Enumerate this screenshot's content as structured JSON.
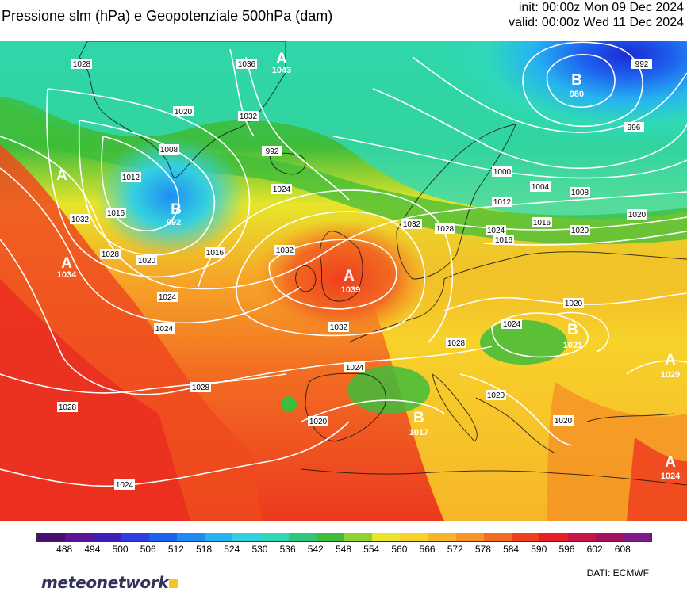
{
  "header": {
    "title": "Pressione slm (hPa) e Geopotenziale 500hPa (dam)",
    "init": "init: 00:00z Mon 09 Dec 2024",
    "valid": "valid: 00:00z Wed 11 Dec 2024"
  },
  "isobar_labels": [
    "1028",
    "1036",
    "1020",
    "1032",
    "1008",
    "1012",
    "1016",
    "992",
    "1024",
    "1032",
    "1028",
    "1024",
    "1016",
    "1020",
    "1032",
    "1032",
    "1028",
    "1028",
    "1024",
    "1024",
    "1032",
    "1028",
    "1020",
    "1024",
    "1028",
    "1020",
    "1016",
    "1020",
    "1012",
    "1020",
    "1000",
    "1004",
    "1008",
    "1016",
    "1020",
    "1024",
    "996",
    "992",
    "1020",
    "1024",
    "1024",
    "1028",
    "1032"
  ],
  "pressure_centers": [
    {
      "letter": "A",
      "value": "1043"
    },
    {
      "letter": "B",
      "value": "992"
    },
    {
      "letter": "A",
      "value": "1034"
    },
    {
      "letter": "A",
      "value": "1039"
    },
    {
      "letter": "B",
      "value": "1017"
    },
    {
      "letter": "B",
      "value": "1021"
    },
    {
      "letter": "A",
      "value": "1029"
    },
    {
      "letter": "A",
      "value": "1024"
    },
    {
      "letter": "B",
      "value": "980"
    },
    {
      "letter": "A",
      "value": ""
    }
  ],
  "legend": {
    "ticks": [
      "488",
      "494",
      "500",
      "506",
      "512",
      "518",
      "524",
      "530",
      "536",
      "542",
      "548",
      "554",
      "560",
      "566",
      "572",
      "578",
      "584",
      "590",
      "596",
      "602",
      "608"
    ],
    "colors": [
      "#4a0f6e",
      "#5b149a",
      "#3f1fb8",
      "#2f3ee0",
      "#1e63f0",
      "#1e8cf2",
      "#26b4f0",
      "#34d0e0",
      "#2fd9b8",
      "#2fc87a",
      "#3fbd3a",
      "#8fd12e",
      "#e8e52a",
      "#f6d22a",
      "#f7b529",
      "#f69426",
      "#f26b22",
      "#ef3e1f",
      "#e81e25",
      "#c91446",
      "#a3125f",
      "#7f1a86"
    ]
  },
  "footer": {
    "brand": "meteonetwork",
    "source": "DATI: ECMWF"
  }
}
